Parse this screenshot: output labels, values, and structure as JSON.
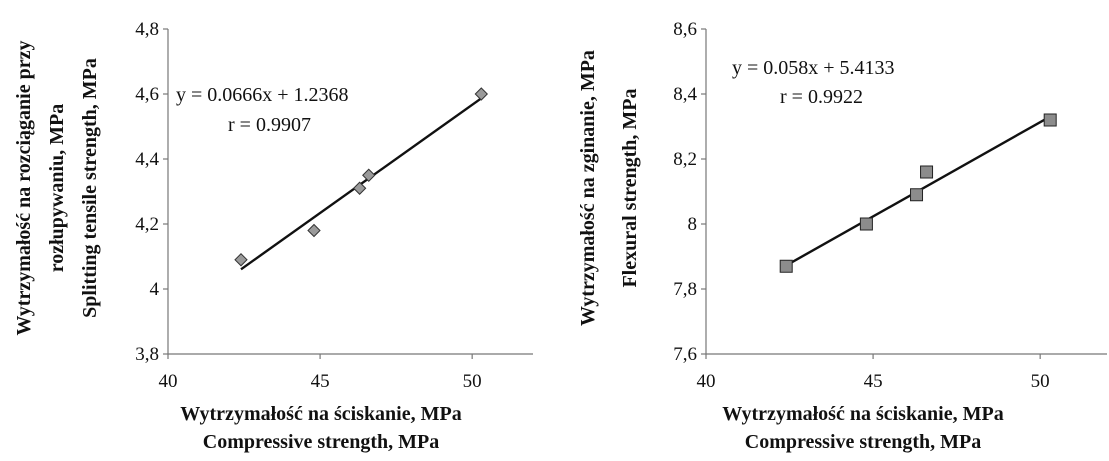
{
  "chart_data": [
    {
      "type": "scatter",
      "marker": "diamond",
      "marker_color": "#9a9a9a",
      "x": [
        42.4,
        44.8,
        46.3,
        46.6,
        50.3
      ],
      "y": [
        4.09,
        4.18,
        4.31,
        4.35,
        4.6
      ],
      "trendline": {
        "slope": 0.0666,
        "intercept": 1.2368,
        "x_range": [
          42.4,
          50.3
        ]
      },
      "equation": "y = 0.0666x + 1.2368",
      "r_text": "r = 0.9907",
      "xlim": [
        40,
        52
      ],
      "ylim": [
        3.8,
        4.8
      ],
      "x_ticks": [
        "40",
        "45",
        "50"
      ],
      "y_ticks": [
        "3,8",
        "4",
        "4,2",
        "4,4",
        "4,6",
        "4,8"
      ],
      "xlabel": [
        "Wytrzymałość na ściskanie, MPa",
        "Compressive strength, MPa"
      ],
      "ylabel": [
        "Wytrzymałość na rozciąganie przy",
        "rozłupywaniu, MPa",
        "Splitting tensile strength, MPa"
      ]
    },
    {
      "type": "scatter",
      "marker": "square",
      "marker_color": "#8c8c8c",
      "x": [
        42.4,
        44.8,
        46.3,
        46.6,
        50.3
      ],
      "y": [
        7.87,
        8.0,
        8.09,
        8.16,
        8.32
      ],
      "trendline": {
        "slope": 0.058,
        "intercept": 5.4133,
        "x_range": [
          42.4,
          50.3
        ]
      },
      "equation": "y = 0.058x + 5.4133",
      "r_text": "r = 0.9922",
      "xlim": [
        40,
        52
      ],
      "ylim": [
        7.6,
        8.6
      ],
      "x_ticks": [
        "40",
        "45",
        "50"
      ],
      "y_ticks": [
        "7,6",
        "7,8",
        "8",
        "8,2",
        "8,4",
        "8,6"
      ],
      "xlabel": [
        "Wytrzymałość na ściskanie, MPa",
        "Compressive strength, MPa"
      ],
      "ylabel": [
        "Wytrzymałość na zginanie, MPa",
        "Flexural strength, MPa"
      ]
    }
  ]
}
